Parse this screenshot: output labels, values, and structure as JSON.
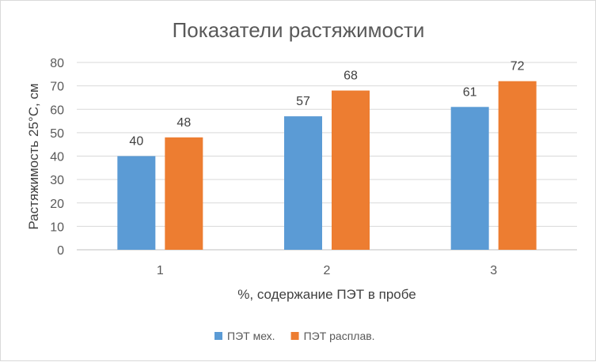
{
  "chart_data": {
    "type": "bar",
    "title": "Показатели растяжимости",
    "xlabel": "%, содержание ПЭТ в пробе",
    "ylabel": "Растяжимость 25°С, см",
    "categories": [
      "1",
      "2",
      "3"
    ],
    "series": [
      {
        "name": "ПЭТ мех.",
        "values": [
          40,
          57,
          61
        ],
        "color": "#5b9bd5"
      },
      {
        "name": "ПЭТ расплав.",
        "values": [
          48,
          68,
          72
        ],
        "color": "#ed7d31"
      }
    ],
    "ylim": [
      0,
      80
    ],
    "yticks": [
      0,
      10,
      20,
      30,
      40,
      50,
      60,
      70,
      80
    ],
    "grid": true,
    "legend_position": "bottom"
  }
}
